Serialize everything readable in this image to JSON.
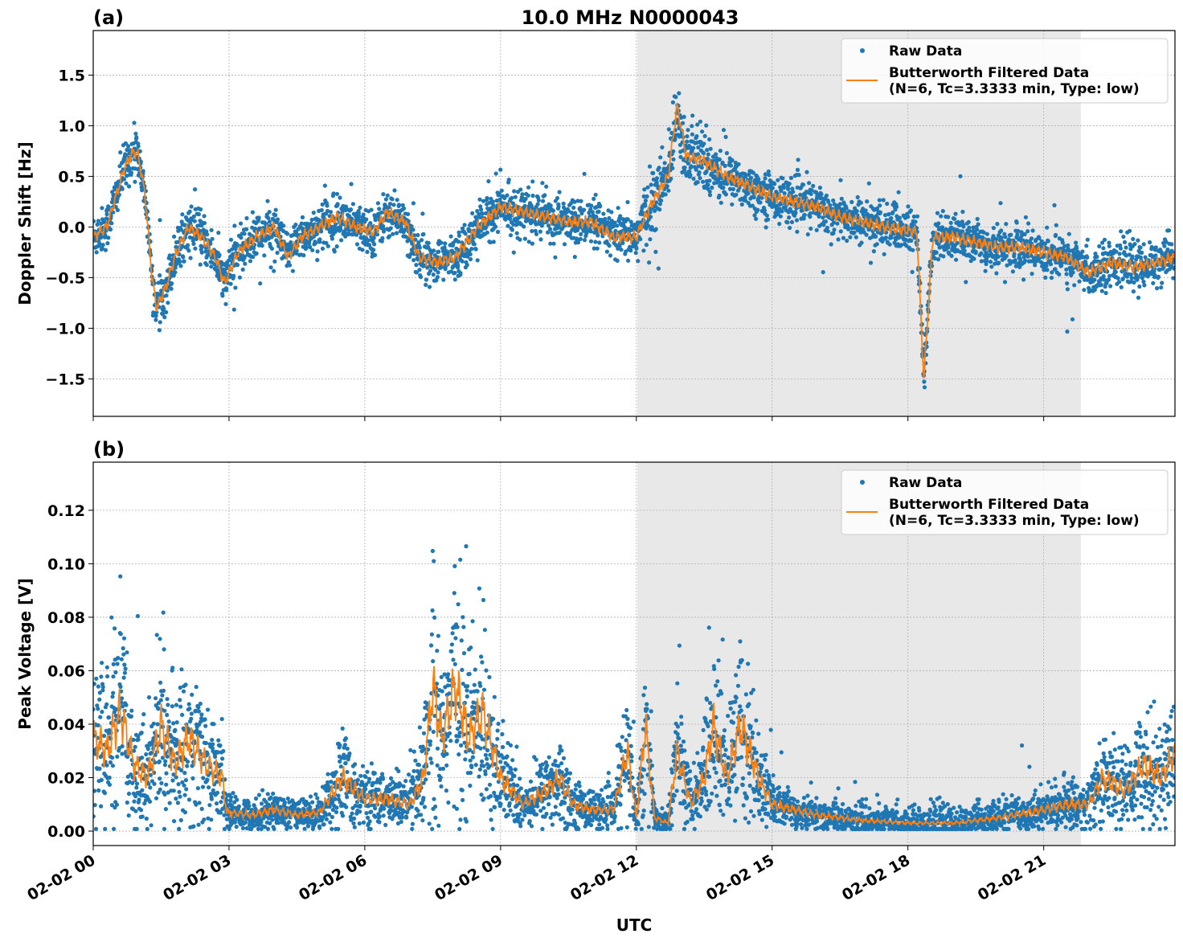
{
  "title": "10.0 MHz N0000043",
  "chart_data": [
    {
      "type": "scatter",
      "panel_label": "(a)",
      "ylabel": "Doppler Shift [Hz]",
      "xlabel": "",
      "xlim": [
        0,
        23.9
      ],
      "ylim": [
        -1.87,
        1.94
      ],
      "x_unit": "hours UTC since 02-02 00",
      "xticks": [
        "02-02 00",
        "02-02 03",
        "02-02 06",
        "02-02 09",
        "02-02 12",
        "02-02 15",
        "02-02 18",
        "02-02 21"
      ],
      "yticks": [
        -1.5,
        -1.0,
        -0.5,
        0.0,
        0.5,
        1.0,
        1.5
      ],
      "ytick_labels": [
        "−1.5",
        "−1.0",
        "−0.5",
        "0.0",
        "0.5",
        "1.0",
        "1.5"
      ],
      "grid": true,
      "shaded_x": [
        12.02,
        21.82
      ],
      "legend_position": "top-right",
      "series": [
        {
          "name": "Raw Data",
          "kind": "scatter"
        },
        {
          "name": "Butterworth Filtered Data\n(N=6, Tc=3.3333 min, Type: low)",
          "kind": "line",
          "x": [
            0,
            0.3,
            0.5,
            0.7,
            0.9,
            1.0,
            1.15,
            1.3,
            1.4,
            1.6,
            1.8,
            2.1,
            2.4,
            2.7,
            2.9,
            3.2,
            3.6,
            4.0,
            4.3,
            4.6,
            5.0,
            5.4,
            5.8,
            6.2,
            6.5,
            6.9,
            7.2,
            7.6,
            8.0,
            8.5,
            9.0,
            9.5,
            10,
            10.5,
            11,
            11.5,
            12,
            12.3,
            12.7,
            12.9,
            13.1,
            13.5,
            14,
            14.5,
            15,
            15.5,
            16,
            16.5,
            17,
            17.5,
            18.2,
            18.35,
            18.45,
            18.55,
            19,
            19.5,
            20,
            20.5,
            21,
            21.5,
            22,
            22.5,
            23,
            23.5,
            23.9
          ],
          "y": [
            -0.1,
            0.0,
            0.3,
            0.6,
            0.75,
            0.7,
            0.3,
            -0.5,
            -0.8,
            -0.6,
            -0.3,
            0.0,
            -0.1,
            -0.3,
            -0.55,
            -0.25,
            -0.1,
            0.0,
            -0.3,
            -0.1,
            0.0,
            0.1,
            0.0,
            -0.05,
            0.15,
            0.05,
            -0.3,
            -0.35,
            -0.3,
            0.0,
            0.2,
            0.15,
            0.1,
            0.05,
            0.05,
            -0.1,
            -0.1,
            0.2,
            0.5,
            1.2,
            0.7,
            0.65,
            0.5,
            0.4,
            0.3,
            0.25,
            0.2,
            0.1,
            0.05,
            0.0,
            -0.05,
            -1.5,
            -0.8,
            -0.1,
            -0.1,
            -0.15,
            -0.2,
            -0.2,
            -0.25,
            -0.3,
            -0.45,
            -0.35,
            -0.4,
            -0.35,
            -0.3
          ]
        }
      ]
    },
    {
      "type": "scatter",
      "panel_label": "(b)",
      "ylabel": "Peak Voltage [V]",
      "xlabel": "UTC",
      "xlim": [
        0,
        23.9
      ],
      "ylim": [
        -0.0054,
        0.138
      ],
      "x_unit": "hours UTC since 02-02 00",
      "xticks": [
        "02-02 00",
        "02-02 03",
        "02-02 06",
        "02-02 09",
        "02-02 12",
        "02-02 15",
        "02-02 18",
        "02-02 21"
      ],
      "yticks": [
        0.0,
        0.02,
        0.04,
        0.06,
        0.08,
        0.1,
        0.12
      ],
      "ytick_labels": [
        "0.00",
        "0.02",
        "0.04",
        "0.06",
        "0.08",
        "0.10",
        "0.12"
      ],
      "grid": true,
      "shaded_x": [
        12.02,
        21.82
      ],
      "legend_position": "top-right",
      "series": [
        {
          "name": "Raw Data",
          "kind": "scatter"
        },
        {
          "name": "Butterworth Filtered Data\n(N=6, Tc=3.3333 min, Type: low)",
          "kind": "line",
          "x": [
            0,
            0.3,
            0.6,
            0.9,
            1.2,
            1.5,
            1.8,
            2.1,
            2.5,
            2.85,
            2.95,
            3.5,
            4,
            4.5,
            5,
            5.5,
            6,
            6.5,
            7,
            7.3,
            7.5,
            7.7,
            8.0,
            8.3,
            8.6,
            9.0,
            9.5,
            10,
            10.3,
            10.6,
            11,
            11.5,
            11.8,
            12,
            12.2,
            12.4,
            12.7,
            12.9,
            13.2,
            13.5,
            13.7,
            14,
            14.3,
            14.7,
            15,
            16,
            17,
            18,
            19,
            20,
            21,
            21.5,
            22,
            22.3,
            22.8,
            23.2,
            23.6,
            23.9
          ],
          "y": [
            0.035,
            0.03,
            0.045,
            0.025,
            0.02,
            0.04,
            0.025,
            0.035,
            0.025,
            0.02,
            0.007,
            0.006,
            0.008,
            0.006,
            0.007,
            0.02,
            0.012,
            0.012,
            0.01,
            0.02,
            0.055,
            0.035,
            0.055,
            0.035,
            0.045,
            0.02,
            0.01,
            0.015,
            0.02,
            0.01,
            0.008,
            0.008,
            0.03,
            0.005,
            0.04,
            0.005,
            0.003,
            0.03,
            0.01,
            0.02,
            0.04,
            0.02,
            0.04,
            0.02,
            0.01,
            0.006,
            0.004,
            0.003,
            0.003,
            0.005,
            0.008,
            0.01,
            0.01,
            0.02,
            0.015,
            0.025,
            0.02,
            0.03
          ]
        }
      ]
    }
  ],
  "colors": {
    "raw": "#1f77b4",
    "filtered": "#ff7f0e",
    "shade": "#e8e8e8"
  }
}
